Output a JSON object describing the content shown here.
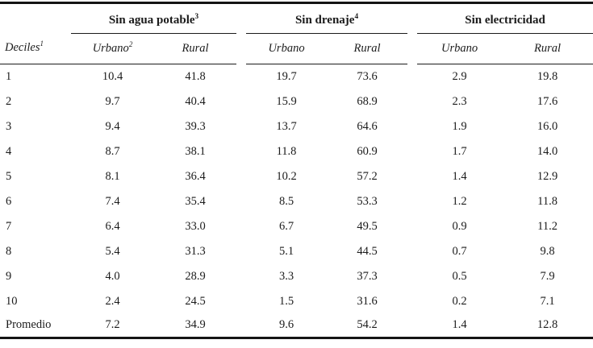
{
  "table": {
    "row_header": {
      "label": "Deciles",
      "sup": "1"
    },
    "groups": [
      {
        "label": "Sin agua potable",
        "sup": "3",
        "columns": [
          {
            "label": "Urbano",
            "sup": "2"
          },
          {
            "label": "Rural",
            "sup": ""
          }
        ]
      },
      {
        "label": "Sin drenaje",
        "sup": "4",
        "columns": [
          {
            "label": "Urbano",
            "sup": ""
          },
          {
            "label": "Rural",
            "sup": ""
          }
        ]
      },
      {
        "label": "Sin electricidad",
        "sup": "",
        "columns": [
          {
            "label": "Urbano",
            "sup": ""
          },
          {
            "label": "Rural",
            "sup": ""
          }
        ]
      }
    ],
    "rows": [
      {
        "label": "1",
        "values": [
          "10.4",
          "41.8",
          "19.7",
          "73.6",
          "2.9",
          "19.8"
        ]
      },
      {
        "label": "2",
        "values": [
          "9.7",
          "40.4",
          "15.9",
          "68.9",
          "2.3",
          "17.6"
        ]
      },
      {
        "label": "3",
        "values": [
          "9.4",
          "39.3",
          "13.7",
          "64.6",
          "1.9",
          "16.0"
        ]
      },
      {
        "label": "4",
        "values": [
          "8.7",
          "38.1",
          "11.8",
          "60.9",
          "1.7",
          "14.0"
        ]
      },
      {
        "label": "5",
        "values": [
          "8.1",
          "36.4",
          "10.2",
          "57.2",
          "1.4",
          "12.9"
        ]
      },
      {
        "label": "6",
        "values": [
          "7.4",
          "35.4",
          "8.5",
          "53.3",
          "1.2",
          "11.8"
        ]
      },
      {
        "label": "7",
        "values": [
          "6.4",
          "33.0",
          "6.7",
          "49.5",
          "0.9",
          "11.2"
        ]
      },
      {
        "label": "8",
        "values": [
          "5.4",
          "31.3",
          "5.1",
          "44.5",
          "0.7",
          "9.8"
        ]
      },
      {
        "label": "9",
        "values": [
          "4.0",
          "28.9",
          "3.3",
          "37.3",
          "0.5",
          "7.9"
        ]
      },
      {
        "label": "10",
        "values": [
          "2.4",
          "24.5",
          "1.5",
          "31.6",
          "0.2",
          "7.1"
        ]
      },
      {
        "label": "Promedio",
        "values": [
          "7.2",
          "34.9",
          "9.6",
          "54.2",
          "1.4",
          "12.8"
        ]
      }
    ],
    "colors": {
      "text": "#1b1b1b",
      "rule": "#141414",
      "background": "#ffffff"
    }
  },
  "chart_data": {
    "type": "table",
    "columns": [
      "Deciles",
      "Sin agua potable Urbano",
      "Sin agua potable Rural",
      "Sin drenaje Urbano",
      "Sin drenaje Rural",
      "Sin electricidad Urbano",
      "Sin electricidad Rural"
    ],
    "rows": [
      [
        "1",
        10.4,
        41.8,
        19.7,
        73.6,
        2.9,
        19.8
      ],
      [
        "2",
        9.7,
        40.4,
        15.9,
        68.9,
        2.3,
        17.6
      ],
      [
        "3",
        9.4,
        39.3,
        13.7,
        64.6,
        1.9,
        16.0
      ],
      [
        "4",
        8.7,
        38.1,
        11.8,
        60.9,
        1.7,
        14.0
      ],
      [
        "5",
        8.1,
        36.4,
        10.2,
        57.2,
        1.4,
        12.9
      ],
      [
        "6",
        7.4,
        35.4,
        8.5,
        53.3,
        1.2,
        11.8
      ],
      [
        "7",
        6.4,
        33.0,
        6.7,
        49.5,
        0.9,
        11.2
      ],
      [
        "8",
        5.4,
        31.3,
        5.1,
        44.5,
        0.7,
        9.8
      ],
      [
        "9",
        4.0,
        28.9,
        3.3,
        37.3,
        0.5,
        7.9
      ],
      [
        "10",
        2.4,
        24.5,
        1.5,
        31.6,
        0.2,
        7.1
      ],
      [
        "Promedio",
        7.2,
        34.9,
        9.6,
        54.2,
        1.4,
        12.8
      ]
    ]
  }
}
